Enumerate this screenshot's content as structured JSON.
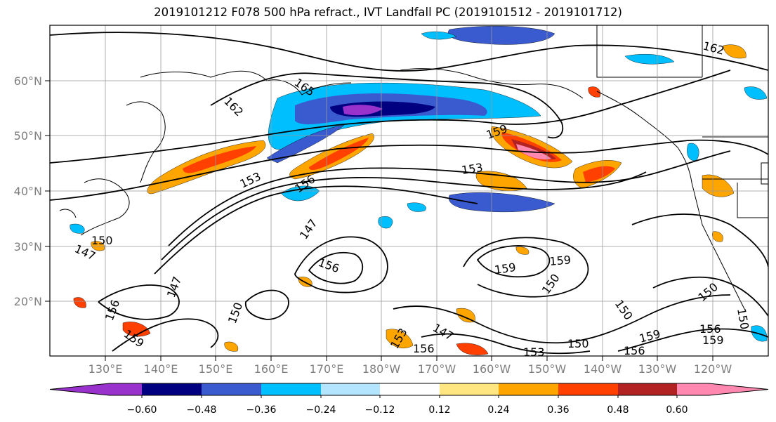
{
  "title": "2019101212 F078 500 hPa refract., IVT Landfall PC (2019101512 - 2019101712)",
  "map": {
    "lat_labels": [
      "60°N",
      "50°N",
      "40°N",
      "30°N",
      "20°N"
    ],
    "lon_labels": [
      "130°E",
      "140°E",
      "150°E",
      "160°E",
      "170°E",
      "180°W",
      "170°W",
      "160°W",
      "150°W",
      "140°W",
      "130°W",
      "120°W"
    ],
    "contour_labels": [
      "165",
      "162",
      "162",
      "153",
      "153",
      "156",
      "159",
      "159",
      "159",
      "147",
      "147",
      "156",
      "150",
      "150",
      "150",
      "147",
      "150",
      "156",
      "159",
      "147",
      "156",
      "153",
      "150",
      "156",
      "159",
      "156",
      "159",
      "150",
      "150",
      "153"
    ]
  },
  "colorbar": {
    "ticks": [
      "−0.60",
      "−0.48",
      "−0.36",
      "−0.24",
      "−0.12",
      "0.12",
      "0.24",
      "0.36",
      "0.48",
      "0.60"
    ],
    "colors": [
      "#9932cc",
      "#000080",
      "#3a5bcf",
      "#00bfff",
      "#b3e5ff",
      "#ffffff",
      "#ffe680",
      "#ffa500",
      "#ff4000",
      "#b22222",
      "#ff88b0"
    ]
  }
}
